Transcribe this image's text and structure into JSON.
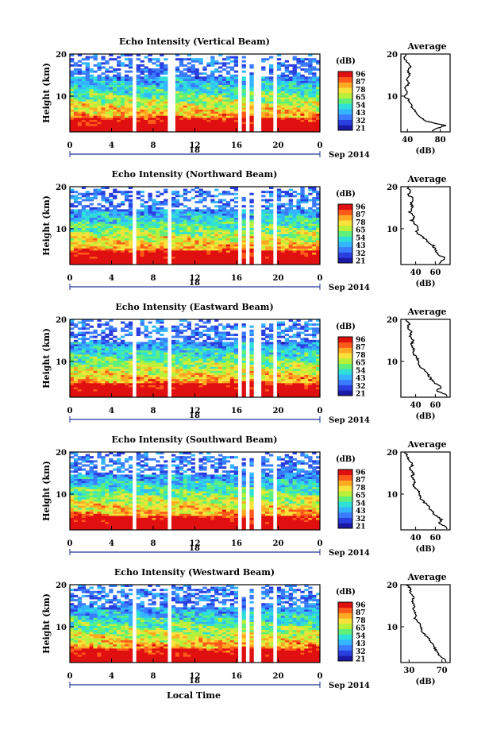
{
  "figure": {
    "date_label": "Sep 2014",
    "day_label": "18",
    "xlabel": "Local Time",
    "ylabel": "Height (km)",
    "colorbar_unit": "(dB)",
    "colorbar_ticks": [
      "96",
      "87",
      "78",
      "65",
      "54",
      "43",
      "32",
      "21"
    ],
    "avg_title": "Average",
    "avg_xlabel": "(dB)",
    "colormap": [
      "#1a1aa6",
      "#2a3fe0",
      "#3a7bff",
      "#33b6ff",
      "#2ee0d8",
      "#5ef07a",
      "#b8f03a",
      "#f6e23a",
      "#ffaa22",
      "#ff5a1a",
      "#e01010"
    ]
  },
  "chart_data": [
    {
      "type": "heatmap",
      "title": "Echo Intensity (Vertical Beam)",
      "x_ticks": [
        "0",
        "4",
        "8",
        "12",
        "16",
        "20",
        "0"
      ],
      "y_ticks": [
        "20",
        "10"
      ],
      "xlim": [
        0,
        24
      ],
      "ylim": [
        1.5,
        20
      ],
      "data_gaps_hours": [
        [
          6.0,
          6.3
        ],
        [
          9.4,
          9.7
        ],
        [
          9.9,
          10.2
        ],
        [
          16.0,
          16.6
        ],
        [
          17.0,
          17.2
        ],
        [
          17.8,
          18.5
        ],
        [
          19.5,
          20.0
        ]
      ],
      "average_profile": {
        "x_ticks": [
          "40",
          "80"
        ],
        "xlim": [
          32,
          92
        ],
        "y_ticks": [
          "20",
          "10"
        ],
        "height_km": [
          20,
          19,
          18,
          17,
          16,
          15,
          14,
          13,
          12,
          11,
          10,
          9,
          8,
          7,
          6,
          5,
          4,
          3,
          2
        ],
        "intensity_db": [
          38,
          36,
          40,
          44,
          40,
          43,
          38,
          42,
          37,
          40,
          36,
          42,
          44,
          46,
          52,
          55,
          64,
          86,
          70
        ]
      }
    },
    {
      "type": "heatmap",
      "title": "Echo Intensity (Northward Beam)",
      "x_ticks": [
        "0",
        "4",
        "8",
        "12",
        "16",
        "20",
        "0"
      ],
      "y_ticks": [
        "20",
        "10"
      ],
      "xlim": [
        0,
        24
      ],
      "ylim": [
        1.5,
        20
      ],
      "data_gaps_hours": [
        [
          6.0,
          6.3
        ],
        [
          9.4,
          9.7
        ],
        [
          16.0,
          16.6
        ],
        [
          17.0,
          17.3
        ],
        [
          17.8,
          18.5
        ],
        [
          19.5,
          20.0
        ]
      ],
      "average_profile": {
        "x_ticks": [
          "40",
          "60"
        ],
        "xlim": [
          25,
          75
        ],
        "y_ticks": [
          "20",
          "10"
        ],
        "height_km": [
          20,
          19,
          18,
          17,
          16,
          15,
          14,
          13,
          12,
          11,
          10,
          9,
          8,
          7,
          6,
          5,
          4,
          3,
          2
        ],
        "intensity_db": [
          32,
          34,
          33,
          38,
          35,
          37,
          34,
          39,
          36,
          40,
          42,
          41,
          47,
          52,
          58,
          60,
          62,
          70,
          64
        ]
      }
    },
    {
      "type": "heatmap",
      "title": "Echo Intensity (Eastward Beam)",
      "x_ticks": [
        "0",
        "4",
        "8",
        "12",
        "16",
        "20",
        "0"
      ],
      "y_ticks": [
        "20",
        "10"
      ],
      "xlim": [
        0,
        24
      ],
      "ylim": [
        1.5,
        20
      ],
      "data_gaps_hours": [
        [
          6.0,
          6.3
        ],
        [
          9.4,
          9.7
        ],
        [
          16.0,
          16.6
        ],
        [
          17.0,
          17.3
        ],
        [
          17.8,
          18.5
        ],
        [
          19.5,
          20.0
        ]
      ],
      "average_profile": {
        "x_ticks": [
          "40",
          "60"
        ],
        "xlim": [
          25,
          75
        ],
        "y_ticks": [
          "20",
          "10"
        ],
        "height_km": [
          20,
          19,
          18,
          17,
          16,
          15,
          14,
          13,
          12,
          11,
          10,
          9,
          8,
          7,
          6,
          5,
          4,
          3,
          2
        ],
        "intensity_db": [
          30,
          33,
          32,
          36,
          34,
          37,
          36,
          38,
          37,
          41,
          43,
          44,
          48,
          52,
          55,
          58,
          66,
          62,
          72
        ]
      }
    },
    {
      "type": "heatmap",
      "title": "Echo Intensity (Southward Beam)",
      "x_ticks": [
        "0",
        "4",
        "8",
        "12",
        "16",
        "20",
        "0"
      ],
      "y_ticks": [
        "20",
        "10"
      ],
      "xlim": [
        0,
        24
      ],
      "ylim": [
        1.5,
        20
      ],
      "data_gaps_hours": [
        [
          6.0,
          6.3
        ],
        [
          9.4,
          9.7
        ],
        [
          16.0,
          16.6
        ],
        [
          17.0,
          17.3
        ],
        [
          17.8,
          18.5
        ],
        [
          19.5,
          20.0
        ]
      ],
      "average_profile": {
        "x_ticks": [
          "40",
          "60"
        ],
        "xlim": [
          25,
          75
        ],
        "y_ticks": [
          "20",
          "10"
        ],
        "height_km": [
          20,
          19,
          18,
          17,
          16,
          15,
          14,
          13,
          12,
          11,
          10,
          9,
          8,
          7,
          6,
          5,
          4,
          3,
          2
        ],
        "intensity_db": [
          29,
          32,
          33,
          37,
          34,
          38,
          36,
          39,
          38,
          42,
          44,
          45,
          49,
          53,
          56,
          60,
          66,
          64,
          72
        ]
      }
    },
    {
      "type": "heatmap",
      "title": "Echo Intensity (Westward Beam)",
      "x_ticks": [
        "0",
        "4",
        "8",
        "12",
        "16",
        "20",
        "0"
      ],
      "y_ticks": [
        "20",
        "10"
      ],
      "xlim": [
        0,
        24
      ],
      "ylim": [
        1.5,
        20
      ],
      "data_gaps_hours": [
        [
          6.0,
          6.3
        ],
        [
          9.4,
          9.7
        ],
        [
          16.0,
          16.6
        ],
        [
          17.0,
          17.3
        ],
        [
          17.8,
          18.5
        ],
        [
          19.5,
          20.0
        ]
      ],
      "average_profile": {
        "x_ticks": [
          "30",
          "70"
        ],
        "xlim": [
          20,
          80
        ],
        "y_ticks": [
          "20",
          "10"
        ],
        "height_km": [
          20,
          19,
          18,
          17,
          16,
          15,
          14,
          13,
          12,
          11,
          10,
          9,
          8,
          7,
          6,
          5,
          4,
          3,
          2
        ],
        "intensity_db": [
          28,
          32,
          31,
          36,
          34,
          36,
          35,
          39,
          37,
          42,
          44,
          46,
          50,
          55,
          58,
          61,
          64,
          68,
          75
        ]
      }
    }
  ]
}
